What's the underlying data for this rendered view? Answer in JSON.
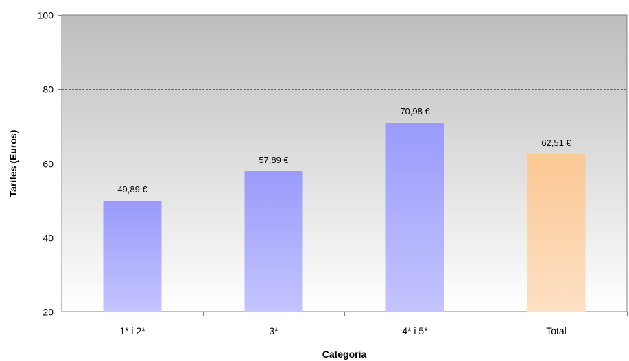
{
  "chart_data": {
    "type": "bar",
    "categories": [
      "1* i 2*",
      "3*",
      "4* i 5*",
      "Total"
    ],
    "values": [
      49.89,
      57.89,
      70.98,
      62.51
    ],
    "data_labels": [
      "49,89 €",
      "57,89 €",
      "70,98 €",
      "62,51 €"
    ],
    "xlabel": "Categoria",
    "ylabel": "Tarifes (Euros)",
    "ylim": [
      20,
      100
    ],
    "yticks": [
      20,
      40,
      60,
      80,
      100
    ],
    "grid": true,
    "bar_colors": [
      "#9a9afc",
      "#9a9afc",
      "#9a9afc",
      "#fcc894"
    ],
    "bar_colors_light": [
      "#c4c4fe",
      "#c4c4fe",
      "#c4c4fe",
      "#fde0c4"
    ],
    "background_top": "#bdbdbd",
    "background_bottom": "#ffffff"
  }
}
